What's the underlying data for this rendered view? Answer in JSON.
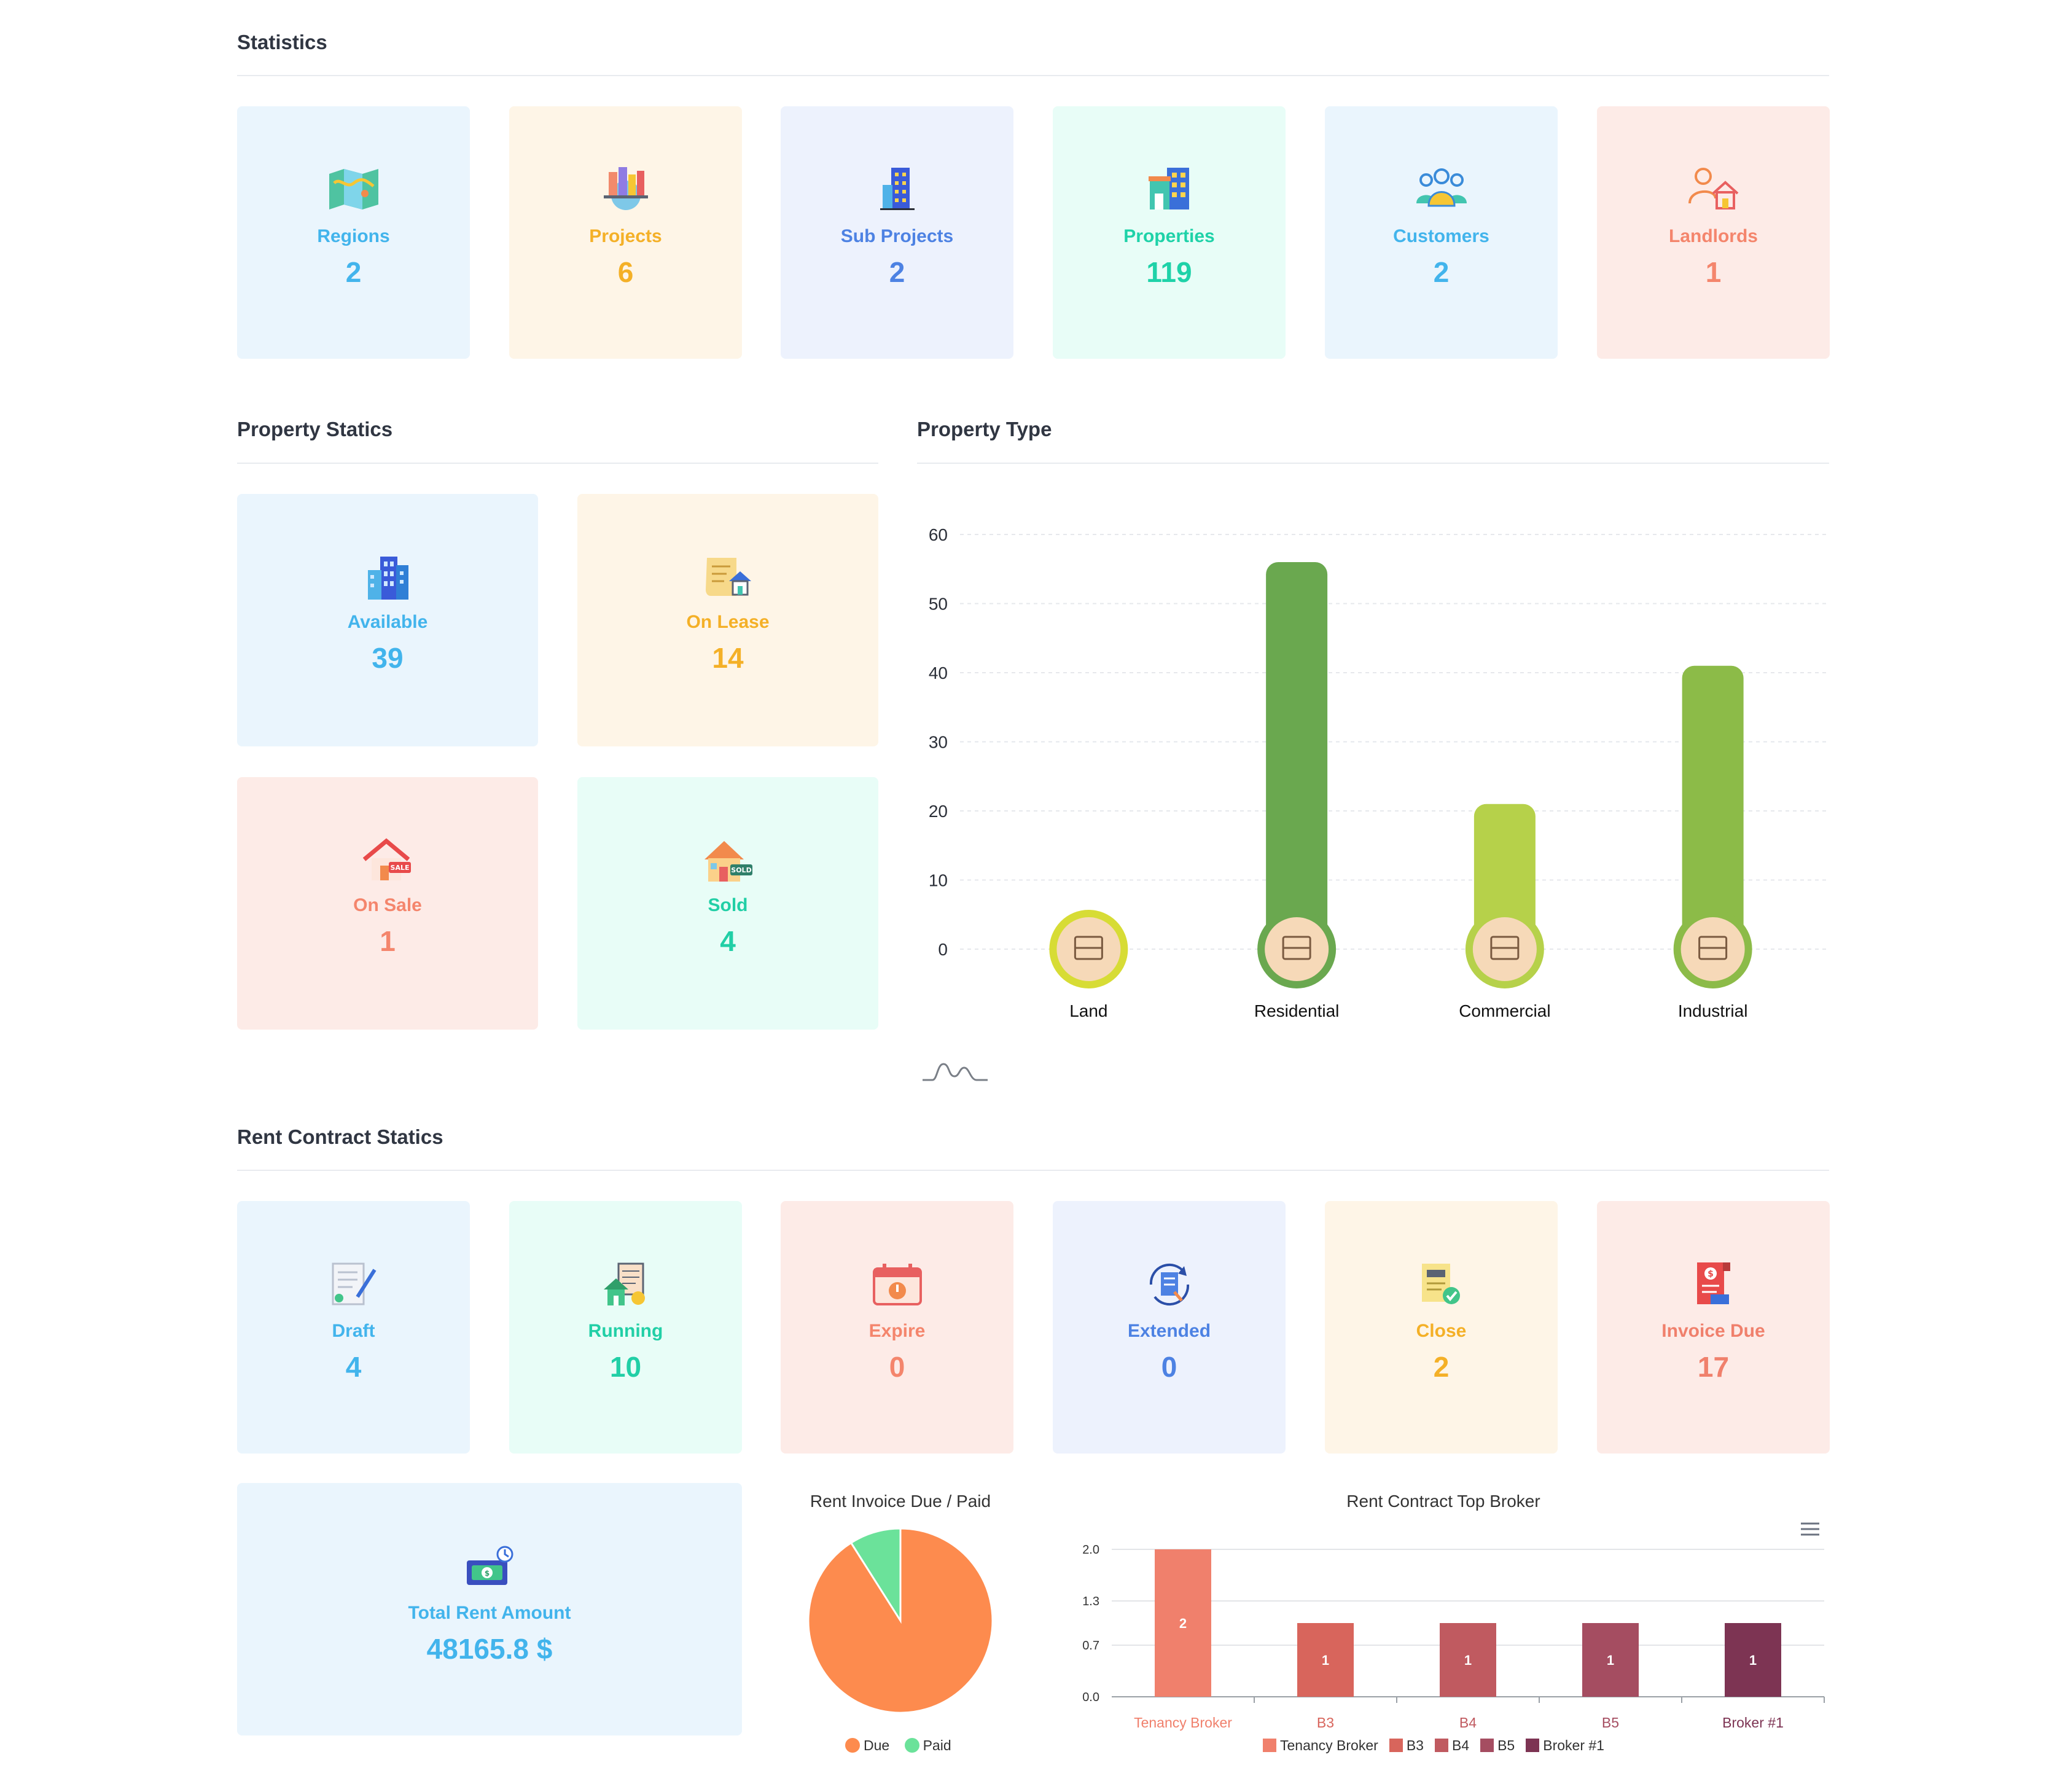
{
  "sections": {
    "statistics": "Statistics",
    "property_statics": "Property Statics",
    "property_type": "Property Type",
    "rent_contract_statics": "Rent Contract Statics"
  },
  "statistics": [
    {
      "label": "Regions",
      "value": "2",
      "icon": "map-icon"
    },
    {
      "label": "Projects",
      "value": "6",
      "icon": "city-globe-icon"
    },
    {
      "label": "Sub Projects",
      "value": "2",
      "icon": "building-icon"
    },
    {
      "label": "Properties",
      "value": "119",
      "icon": "shops-icon"
    },
    {
      "label": "Customers",
      "value": "2",
      "icon": "users-group-icon"
    },
    {
      "label": "Landlords",
      "value": "1",
      "icon": "landlord-house-icon"
    }
  ],
  "property_statics": [
    {
      "label": "Available",
      "value": "39",
      "icon": "buildings-icon"
    },
    {
      "label": "On Lease",
      "value": "14",
      "icon": "lease-document-icon"
    },
    {
      "label": "On Sale",
      "value": "1",
      "icon": "sale-house-icon"
    },
    {
      "label": "Sold",
      "value": "4",
      "icon": "sold-house-icon"
    }
  ],
  "rent_contract_statics": [
    {
      "label": "Draft",
      "value": "4",
      "icon": "draft-contract-icon"
    },
    {
      "label": "Running",
      "value": "10",
      "icon": "running-house-icon"
    },
    {
      "label": "Expire",
      "value": "0",
      "icon": "calendar-expire-icon"
    },
    {
      "label": "Extended",
      "value": "0",
      "icon": "refresh-document-icon"
    },
    {
      "label": "Close",
      "value": "2",
      "icon": "closed-document-icon"
    },
    {
      "label": "Invoice Due",
      "value": "17",
      "icon": "invoice-icon"
    }
  ],
  "total_rent": {
    "label": "Total Rent Amount",
    "value": "48165.8 $",
    "icon": "money-icon"
  },
  "colors": {
    "bar_land": "#d7dc35",
    "bar_residential": "#6aa84f",
    "bar_commercial": "#b6d14a",
    "bar_industrial": "#8cbb48",
    "pie_due": "#fd8b4e",
    "pie_paid": "#6be29a"
  },
  "chart_data": [
    {
      "type": "bar",
      "title": "",
      "categories": [
        "Land",
        "Residential",
        "Commercial",
        "Industrial"
      ],
      "values": [
        0,
        56,
        21,
        41
      ],
      "yticks": [
        "0",
        "10",
        "20",
        "30",
        "40",
        "50",
        "60"
      ],
      "ylim": [
        0,
        60
      ],
      "grid": true
    },
    {
      "type": "pie",
      "title": "Rent Invoice Due / Paid",
      "labels": [
        "Due",
        "Paid"
      ],
      "values": [
        91,
        9
      ],
      "legend": "bottom"
    },
    {
      "type": "bar",
      "title": "Rent Contract Top Broker",
      "categories": [
        "Tenancy Broker",
        "B3",
        "B4",
        "B5",
        "Broker #1"
      ],
      "values": [
        2,
        1,
        1,
        1,
        1
      ],
      "data_labels": [
        "2",
        "1",
        "1",
        "1",
        "1"
      ],
      "yticks": [
        "0.0",
        "0.7",
        "1.3",
        "2.0"
      ],
      "ylim": [
        0,
        2
      ],
      "legend": "bottom",
      "colors": [
        "#f0806c",
        "#d8655c",
        "#c05a60",
        "#a54d61",
        "#7d3453"
      ]
    }
  ]
}
